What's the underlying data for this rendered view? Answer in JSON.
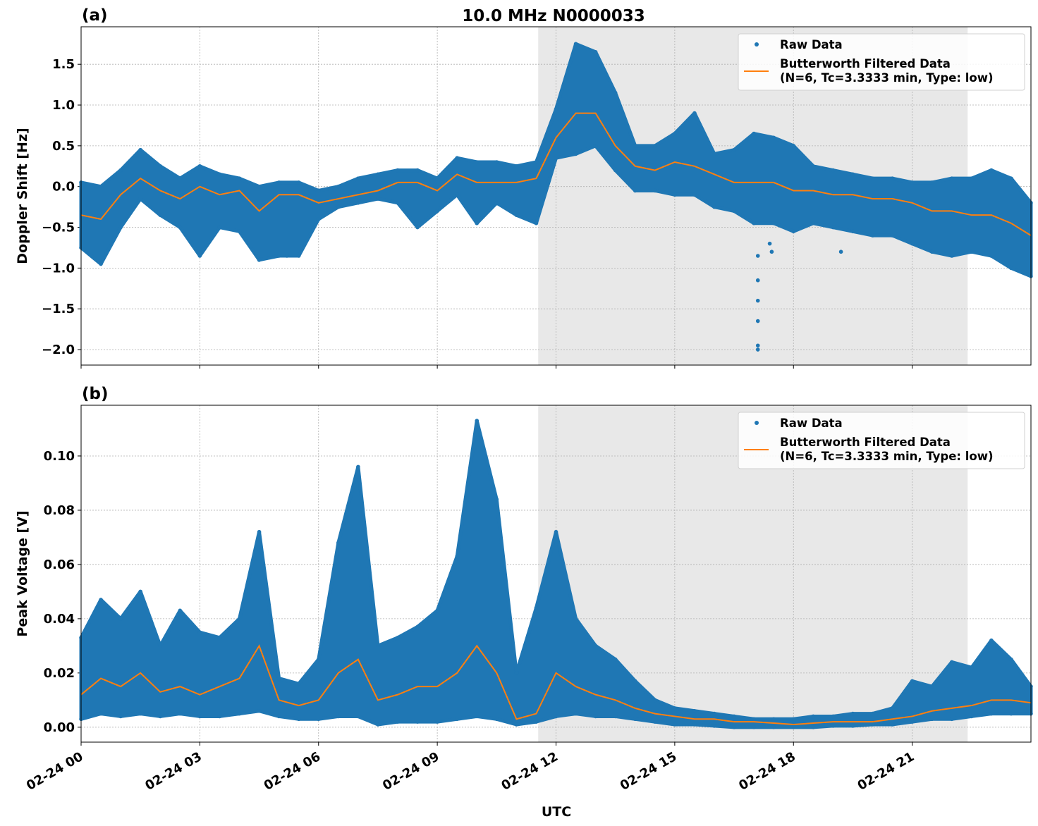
{
  "title": "10.0 MHz N0000033",
  "xlabel": "UTC",
  "colors": {
    "raw": "#1f77b4",
    "filtered": "#ff7f0e",
    "shade": "#e8e8e8",
    "grid": "#b0b0b0"
  },
  "legend": {
    "raw": "Raw Data",
    "filtered_line1": "Butterworth Filtered Data",
    "filtered_line2": "(N=6, Tc=3.3333 min, Type: low)",
    "placement": "top-right"
  },
  "x_ticks": [
    "02-24 00",
    "02-24 03",
    "02-24 06",
    "02-24 09",
    "02-24 12",
    "02-24 15",
    "02-24 18",
    "02-24 21"
  ],
  "chart_data": [
    {
      "type": "scatter+line",
      "panel_label": "(a)",
      "ylabel": "Doppler Shift [Hz]",
      "x_unit": "hours UTC on 02-24",
      "xlim": [
        0,
        24
      ],
      "ylim": [
        -2.19,
        1.96
      ],
      "y_ticks": [
        "−2.0",
        "−1.5",
        "−1.0",
        "−0.5",
        "0.0",
        "0.5",
        "1.0",
        "1.5"
      ],
      "y_tick_values": [
        -2.0,
        -1.5,
        -1.0,
        -0.5,
        0.0,
        0.5,
        1.0,
        1.5
      ],
      "grid": true,
      "shaded_interval": [
        11.55,
        22.4
      ],
      "x": [
        0,
        0.5,
        1,
        1.5,
        2,
        2.5,
        3,
        3.5,
        4,
        4.5,
        5,
        5.5,
        6,
        6.5,
        7,
        7.5,
        8,
        8.5,
        9,
        9.5,
        10,
        10.5,
        11,
        11.5,
        12,
        12.5,
        13,
        13.5,
        14,
        14.5,
        15,
        15.5,
        16,
        16.5,
        17,
        17.5,
        18,
        18.5,
        19,
        19.5,
        20,
        20.5,
        21,
        21.5,
        22,
        22.5,
        23,
        23.5,
        24
      ],
      "series": [
        {
          "name": "Butterworth Filtered Data",
          "kind": "line",
          "values": [
            -0.35,
            -0.4,
            -0.1,
            0.1,
            -0.05,
            -0.15,
            0.0,
            -0.1,
            -0.05,
            -0.3,
            -0.1,
            -0.1,
            -0.2,
            -0.15,
            -0.1,
            -0.05,
            0.05,
            0.05,
            -0.05,
            0.15,
            0.05,
            0.05,
            0.05,
            0.1,
            0.6,
            0.9,
            0.9,
            0.5,
            0.25,
            0.2,
            0.3,
            0.25,
            0.15,
            0.05,
            0.05,
            0.05,
            -0.05,
            -0.05,
            -0.1,
            -0.1,
            -0.15,
            -0.15,
            -0.2,
            -0.3,
            -0.3,
            -0.35,
            -0.35,
            -0.45,
            -0.6
          ]
        },
        {
          "name": "Raw Data",
          "kind": "scatter-envelope",
          "max": [
            0.05,
            0.0,
            0.2,
            0.45,
            0.25,
            0.1,
            0.25,
            0.15,
            0.1,
            0.0,
            0.05,
            0.05,
            -0.05,
            0.0,
            0.1,
            0.15,
            0.2,
            0.2,
            0.1,
            0.35,
            0.3,
            0.3,
            0.25,
            0.3,
            0.95,
            1.75,
            1.65,
            1.15,
            0.5,
            0.5,
            0.65,
            0.9,
            0.4,
            0.45,
            0.65,
            0.6,
            0.5,
            0.25,
            0.2,
            0.15,
            0.1,
            0.1,
            0.05,
            0.05,
            0.1,
            0.1,
            0.2,
            0.1,
            -0.2
          ],
          "min": [
            -0.75,
            -0.95,
            -0.5,
            -0.15,
            -0.35,
            -0.5,
            -0.85,
            -0.5,
            -0.55,
            -0.9,
            -0.85,
            -0.85,
            -0.4,
            -0.25,
            -0.2,
            -0.15,
            -0.2,
            -0.5,
            -0.3,
            -0.1,
            -0.45,
            -0.2,
            -0.35,
            -0.45,
            0.35,
            0.4,
            0.5,
            0.2,
            -0.05,
            -0.05,
            -0.1,
            -0.1,
            -0.25,
            -0.3,
            -0.45,
            -0.45,
            -0.55,
            -0.45,
            -0.5,
            -0.55,
            -0.6,
            -0.6,
            -0.7,
            -0.8,
            -0.85,
            -0.8,
            -0.85,
            -1.0,
            -1.1
          ],
          "outliers": [
            [
              17.1,
              -0.85
            ],
            [
              17.1,
              -1.15
            ],
            [
              17.1,
              -1.4
            ],
            [
              17.1,
              -1.65
            ],
            [
              17.1,
              -1.95
            ],
            [
              17.1,
              -2.0
            ],
            [
              17.4,
              -0.7
            ],
            [
              17.45,
              -0.8
            ],
            [
              4.5,
              -0.9
            ],
            [
              5.2,
              -0.85
            ],
            [
              19.2,
              -0.8
            ]
          ]
        }
      ]
    },
    {
      "type": "scatter+line",
      "panel_label": "(b)",
      "ylabel": "Peak Voltage [V]",
      "x_unit": "hours UTC on 02-24",
      "xlim": [
        0,
        24
      ],
      "ylim": [
        -0.0055,
        0.1187
      ],
      "y_ticks": [
        "0.00",
        "0.02",
        "0.04",
        "0.06",
        "0.08",
        "0.10"
      ],
      "y_tick_values": [
        0.0,
        0.02,
        0.04,
        0.06,
        0.08,
        0.1
      ],
      "grid": true,
      "shaded_interval": [
        11.55,
        22.4
      ],
      "x": [
        0,
        0.5,
        1,
        1.5,
        2,
        2.5,
        3,
        3.5,
        4,
        4.5,
        5,
        5.5,
        6,
        6.5,
        7,
        7.5,
        8,
        8.5,
        9,
        9.5,
        10,
        10.5,
        11,
        11.5,
        12,
        12.5,
        13,
        13.5,
        14,
        14.5,
        15,
        15.5,
        16,
        16.5,
        17,
        17.5,
        18,
        18.5,
        19,
        19.5,
        20,
        20.5,
        21,
        21.5,
        22,
        22.5,
        23,
        23.5,
        24
      ],
      "series": [
        {
          "name": "Butterworth Filtered Data",
          "kind": "line",
          "values": [
            0.012,
            0.018,
            0.015,
            0.02,
            0.013,
            0.015,
            0.012,
            0.015,
            0.018,
            0.03,
            0.01,
            0.008,
            0.01,
            0.02,
            0.025,
            0.01,
            0.012,
            0.015,
            0.015,
            0.02,
            0.03,
            0.02,
            0.003,
            0.005,
            0.02,
            0.015,
            0.012,
            0.01,
            0.007,
            0.005,
            0.004,
            0.003,
            0.003,
            0.002,
            0.002,
            0.0015,
            0.001,
            0.0015,
            0.002,
            0.002,
            0.002,
            0.003,
            0.004,
            0.006,
            0.007,
            0.008,
            0.01,
            0.01,
            0.009
          ]
        },
        {
          "name": "Raw Data",
          "kind": "scatter-envelope",
          "max": [
            0.033,
            0.047,
            0.04,
            0.05,
            0.03,
            0.043,
            0.035,
            0.033,
            0.04,
            0.072,
            0.018,
            0.016,
            0.025,
            0.068,
            0.096,
            0.03,
            0.033,
            0.037,
            0.043,
            0.063,
            0.113,
            0.084,
            0.02,
            0.044,
            0.072,
            0.04,
            0.03,
            0.025,
            0.017,
            0.01,
            0.007,
            0.006,
            0.005,
            0.004,
            0.003,
            0.003,
            0.003,
            0.004,
            0.004,
            0.005,
            0.005,
            0.007,
            0.017,
            0.015,
            0.024,
            0.022,
            0.032,
            0.025,
            0.015
          ],
          "min": [
            0.003,
            0.005,
            0.004,
            0.005,
            0.004,
            0.005,
            0.004,
            0.004,
            0.005,
            0.006,
            0.004,
            0.003,
            0.003,
            0.004,
            0.004,
            0.001,
            0.002,
            0.002,
            0.002,
            0.003,
            0.004,
            0.003,
            0.001,
            0.002,
            0.004,
            0.005,
            0.004,
            0.004,
            0.003,
            0.002,
            0.001,
            0.001,
            0.0005,
            0,
            0,
            0,
            0,
            0,
            0.0005,
            0.0005,
            0.001,
            0.001,
            0.002,
            0.003,
            0.003,
            0.004,
            0.005,
            0.005,
            0.005
          ],
          "outliers": []
        }
      ]
    }
  ]
}
